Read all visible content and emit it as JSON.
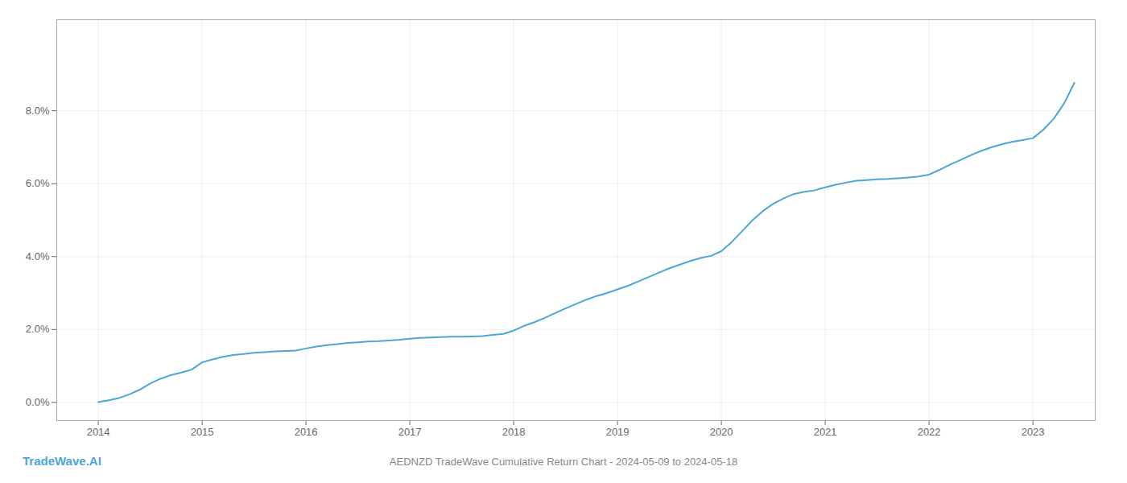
{
  "chart_data": {
    "type": "line",
    "title": "AEDNZD TradeWave Cumulative Return Chart - 2024-05-09 to 2024-05-18",
    "annotations": [
      "TradeWave.AI"
    ],
    "color": "#4da6d8",
    "x": [
      2014.0,
      2014.1,
      2014.2,
      2014.3,
      2014.4,
      2014.5,
      2014.6,
      2014.7,
      2014.8,
      2014.9,
      2015.0,
      2015.1,
      2015.2,
      2015.3,
      2015.4,
      2015.5,
      2015.6,
      2015.7,
      2015.8,
      2015.9,
      2016.0,
      2016.1,
      2016.2,
      2016.3,
      2016.4,
      2016.5,
      2016.6,
      2016.7,
      2016.8,
      2016.9,
      2017.0,
      2017.1,
      2017.2,
      2017.3,
      2017.4,
      2017.5,
      2017.6,
      2017.7,
      2017.8,
      2017.9,
      2018.0,
      2018.1,
      2018.2,
      2018.3,
      2018.4,
      2018.5,
      2018.6,
      2018.7,
      2018.8,
      2018.9,
      2019.0,
      2019.1,
      2019.2,
      2019.3,
      2019.4,
      2019.5,
      2019.6,
      2019.7,
      2019.8,
      2019.9,
      2020.0,
      2020.1,
      2020.2,
      2020.3,
      2020.4,
      2020.5,
      2020.6,
      2020.7,
      2020.8,
      2020.9,
      2021.0,
      2021.1,
      2021.2,
      2021.3,
      2021.4,
      2021.5,
      2021.6,
      2021.7,
      2021.8,
      2021.9,
      2022.0,
      2022.1,
      2022.2,
      2022.3,
      2022.4,
      2022.5,
      2022.6,
      2022.7,
      2022.8,
      2022.9,
      2023.0,
      2023.1,
      2023.2,
      2023.3,
      2023.4
    ],
    "values": [
      0.0001,
      0.0006,
      0.0012,
      0.0022,
      0.0035,
      0.0052,
      0.0065,
      0.0075,
      0.0082,
      0.009,
      0.011,
      0.0118,
      0.0125,
      0.013,
      0.0133,
      0.0136,
      0.0138,
      0.014,
      0.0141,
      0.0142,
      0.0148,
      0.0153,
      0.0157,
      0.016,
      0.0163,
      0.0165,
      0.0167,
      0.0168,
      0.017,
      0.0172,
      0.0175,
      0.0177,
      0.0178,
      0.0179,
      0.018,
      0.018,
      0.0181,
      0.0182,
      0.0185,
      0.0188,
      0.0197,
      0.021,
      0.022,
      0.0232,
      0.0245,
      0.0258,
      0.027,
      0.0282,
      0.0292,
      0.03,
      0.031,
      0.032,
      0.0332,
      0.0344,
      0.0356,
      0.0368,
      0.0378,
      0.0388,
      0.0396,
      0.0402,
      0.0415,
      0.044,
      0.047,
      0.05,
      0.0525,
      0.0545,
      0.056,
      0.0572,
      0.0578,
      0.0582,
      0.059,
      0.0597,
      0.0603,
      0.0608,
      0.061,
      0.0612,
      0.0613,
      0.0615,
      0.0617,
      0.062,
      0.0625,
      0.0638,
      0.0652,
      0.0665,
      0.0678,
      0.069,
      0.07,
      0.0708,
      0.0715,
      0.072,
      0.0725,
      0.0748,
      0.0778,
      0.082,
      0.0877
    ],
    "xlim": [
      2013.6,
      2023.6
    ],
    "xticks": [
      2014,
      2015,
      2016,
      2017,
      2018,
      2019,
      2020,
      2021,
      2022,
      2023
    ],
    "ylim": [
      -0.005,
      0.105
    ],
    "yticks": [
      {
        "value": 0.0,
        "label": "0.0%"
      },
      {
        "value": 0.02,
        "label": "2.0%"
      },
      {
        "value": 0.04,
        "label": "4.0%"
      },
      {
        "value": 0.06,
        "label": "6.0%"
      },
      {
        "value": 0.08,
        "label": "8.0%"
      }
    ],
    "grid": true
  }
}
